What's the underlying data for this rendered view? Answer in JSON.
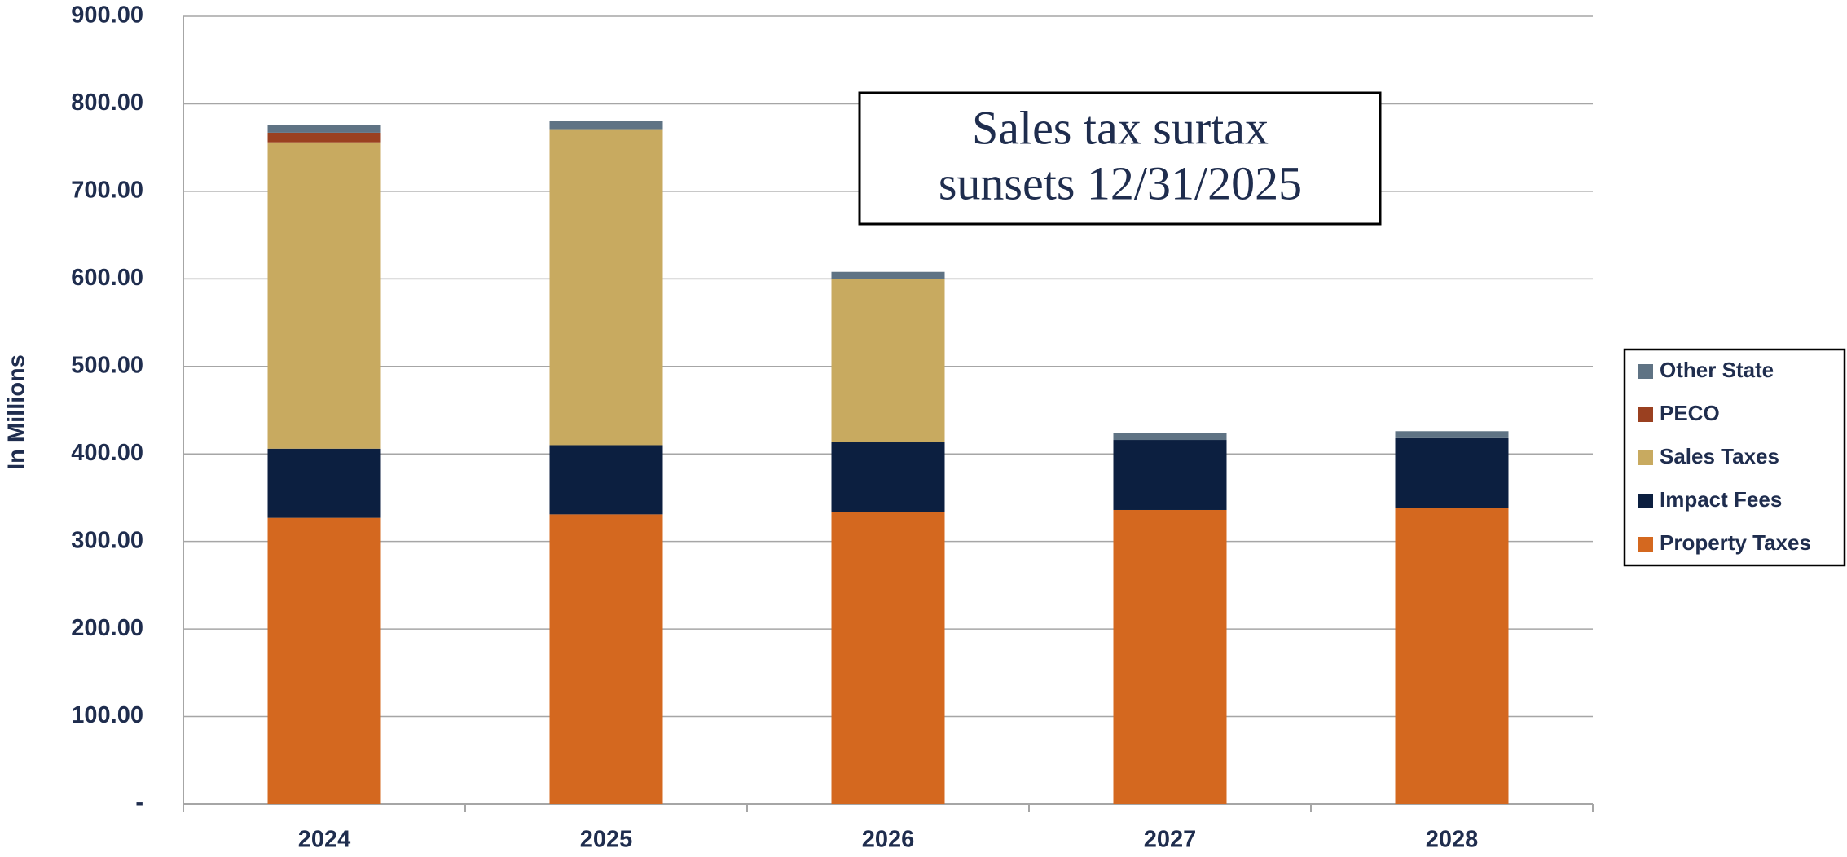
{
  "chart_data": {
    "type": "stacked_bar",
    "y_label": "In Millions",
    "annotation": [
      "Sales tax surtax",
      "sunsets 12/31/2025"
    ],
    "categories": [
      "2024",
      "2025",
      "2026",
      "2027",
      "2028"
    ],
    "series": [
      {
        "name": "Property Taxes",
        "color": "#d4681f",
        "values": [
          327,
          331,
          334,
          336,
          338
        ]
      },
      {
        "name": "Impact Fees",
        "color": "#0c1f40",
        "values": [
          79,
          79,
          80,
          80,
          80
        ]
      },
      {
        "name": "Sales Taxes",
        "color": "#c8aa60",
        "values": [
          350,
          361,
          186,
          0,
          0
        ]
      },
      {
        "name": "PECO",
        "color": "#9a4020",
        "values": [
          11,
          0,
          0,
          0,
          0
        ]
      },
      {
        "name": "Other State",
        "color": "#5f7384",
        "values": [
          9,
          9,
          8,
          8,
          8
        ]
      }
    ],
    "ylim": [
      0,
      900
    ],
    "yticks": [
      {
        "value": 0,
        "label": "-"
      },
      {
        "value": 100,
        "label": "100.00"
      },
      {
        "value": 200,
        "label": "200.00"
      },
      {
        "value": 300,
        "label": "300.00"
      },
      {
        "value": 400,
        "label": "400.00"
      },
      {
        "value": 500,
        "label": "500.00"
      },
      {
        "value": 600,
        "label": "600.00"
      },
      {
        "value": 700,
        "label": "700.00"
      },
      {
        "value": 800,
        "label": "800.00"
      },
      {
        "value": 900,
        "label": "900.00"
      }
    ],
    "grid": true,
    "legend": "right"
  }
}
